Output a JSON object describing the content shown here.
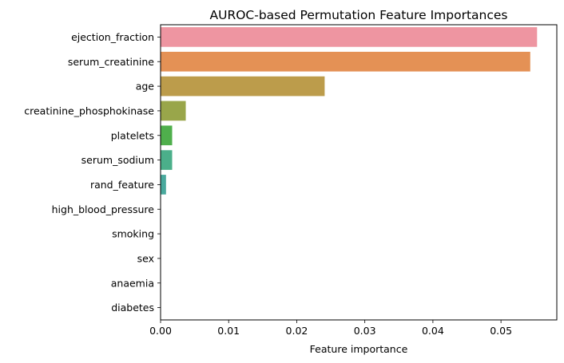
{
  "chart_data": {
    "type": "bar",
    "orientation": "horizontal",
    "title": "AUROC-based Permutation Feature Importances",
    "xlabel": "Feature importance",
    "ylabel": "",
    "xlim": [
      0,
      0.0582
    ],
    "xticks": [
      0.0,
      0.01,
      0.02,
      0.03,
      0.04,
      0.05
    ],
    "xtick_labels": [
      "0.00",
      "0.01",
      "0.02",
      "0.03",
      "0.04",
      "0.05"
    ],
    "grid": false,
    "categories": [
      "ejection_fraction",
      "serum_creatinine",
      "age",
      "creatinine_phosphokinase",
      "platelets",
      "serum_sodium",
      "rand_feature",
      "high_blood_pressure",
      "smoking",
      "sex",
      "anaemia",
      "diabetes"
    ],
    "values": [
      0.0553,
      0.0543,
      0.0241,
      0.0037,
      0.0017,
      0.0017,
      0.0008,
      0.0,
      0.0,
      0.0,
      0.0,
      0.0
    ],
    "colors": [
      "#ee95a1",
      "#e49155",
      "#bc9c4b",
      "#99a64a",
      "#4faf4c",
      "#4baf8a",
      "#49a99d",
      "#4ca7b8",
      "#6ea8e8",
      "#a99ae6",
      "#e17de8",
      "#ec8ec0"
    ]
  }
}
